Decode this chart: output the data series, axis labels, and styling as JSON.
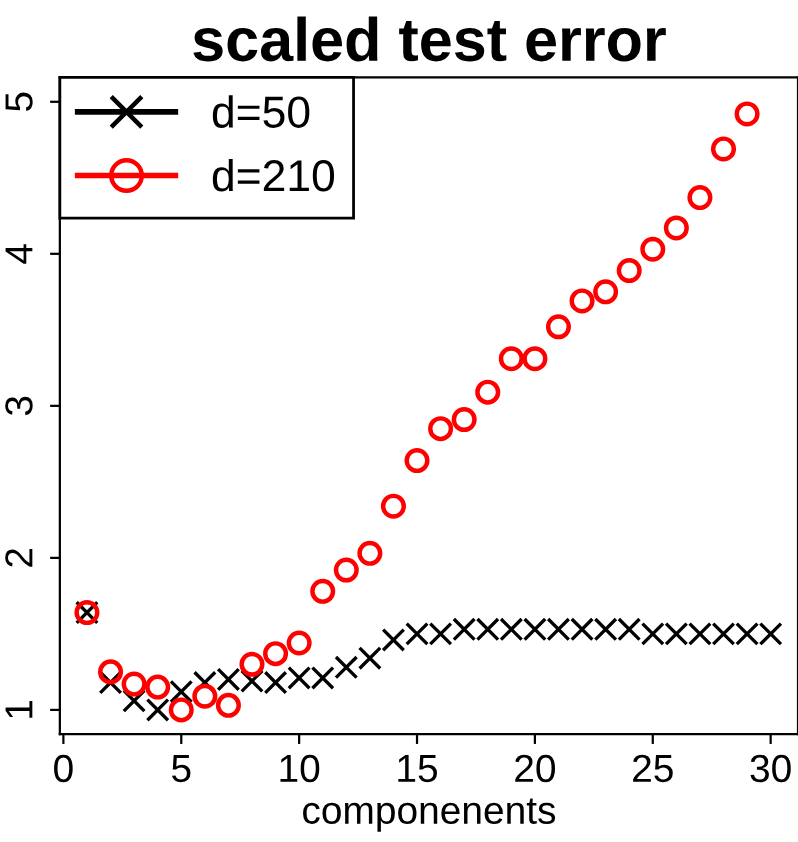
{
  "chart_data": {
    "type": "scatter",
    "title": "scaled test error",
    "xlabel": "componenents",
    "xlim": [
      -0.15,
      31.16
    ],
    "ylim": [
      0.84,
      5.16
    ],
    "xticks": [
      0,
      5,
      10,
      15,
      20,
      25,
      30
    ],
    "yticks": [
      1,
      2,
      3,
      4,
      5
    ],
    "grid": false,
    "legend": "top left",
    "series": [
      {
        "name": "d=50",
        "color": "#000000",
        "marker": "cross",
        "x": [
          1,
          2,
          3,
          4,
          5,
          6,
          7,
          8,
          9,
          10,
          11,
          12,
          13,
          14,
          15,
          16,
          17,
          18,
          19,
          20,
          21,
          22,
          23,
          24,
          25,
          26,
          27,
          28,
          29,
          30
        ],
        "values": [
          1.64,
          1.18,
          1.06,
          1.0,
          1.12,
          1.18,
          1.2,
          1.19,
          1.18,
          1.21,
          1.21,
          1.28,
          1.34,
          1.46,
          1.5,
          1.5,
          1.53,
          1.53,
          1.53,
          1.53,
          1.53,
          1.53,
          1.53,
          1.53,
          1.5,
          1.5,
          1.5,
          1.5,
          1.5,
          1.5
        ]
      },
      {
        "name": "d=210",
        "color": "#ff0000",
        "marker": "circle",
        "x": [
          1,
          2,
          3,
          4,
          5,
          6,
          7,
          8,
          9,
          10,
          11,
          12,
          13,
          14,
          15,
          16,
          17,
          18,
          19,
          20,
          21,
          22,
          23,
          24,
          25,
          26,
          27,
          28,
          29
        ],
        "values": [
          1.64,
          1.25,
          1.17,
          1.15,
          1.0,
          1.09,
          1.03,
          1.3,
          1.37,
          1.44,
          1.78,
          1.92,
          2.03,
          2.34,
          2.64,
          2.85,
          2.91,
          3.09,
          3.31,
          3.31,
          3.52,
          3.69,
          3.75,
          3.89,
          4.03,
          4.17,
          4.37,
          4.69,
          4.92
        ]
      }
    ]
  }
}
